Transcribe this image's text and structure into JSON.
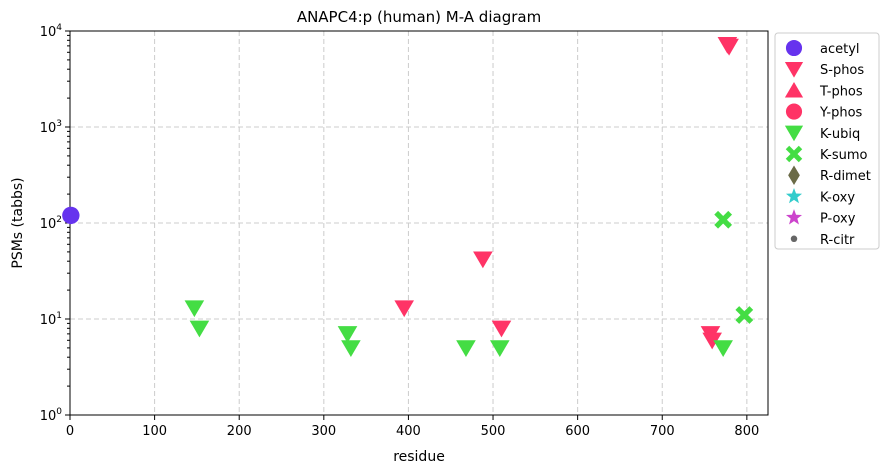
{
  "chart_data": {
    "type": "scatter",
    "title": "ANAPC4:p (human) M-A diagram",
    "xlabel": "residue",
    "ylabel": "PSMs (tabbs)",
    "xlim": [
      0,
      825
    ],
    "ylim": [
      1,
      10000
    ],
    "yscale": "log",
    "grid": true,
    "legend_placement": "outside-right",
    "x_ticks": [
      0,
      100,
      200,
      300,
      400,
      500,
      600,
      700,
      800
    ],
    "y_ticks": [
      {
        "base": "10",
        "exp": "0",
        "value": 1
      },
      {
        "base": "10",
        "exp": "1",
        "value": 10
      },
      {
        "base": "10",
        "exp": "2",
        "value": 100
      },
      {
        "base": "10",
        "exp": "3",
        "value": 1000
      },
      {
        "base": "10",
        "exp": "4",
        "value": 10000
      }
    ],
    "series": [
      {
        "name": "acetyl",
        "marker": "circle",
        "color": "#6633ee",
        "points": [
          [
            1,
            120
          ]
        ]
      },
      {
        "name": "S-phos",
        "marker": "triangle-down",
        "color": "#ff3366",
        "points": [
          [
            395,
            13
          ],
          [
            488,
            42
          ],
          [
            510,
            8
          ],
          [
            757,
            7
          ],
          [
            759,
            6
          ],
          [
            777,
            7200
          ],
          [
            779,
            6900
          ]
        ]
      },
      {
        "name": "T-phos",
        "marker": "triangle-up",
        "color": "#ff3366",
        "points": []
      },
      {
        "name": "Y-phos",
        "marker": "circle",
        "color": "#ff3366",
        "points": []
      },
      {
        "name": "K-ubiq",
        "marker": "triangle-down",
        "color": "#44dd44",
        "points": [
          [
            147,
            13
          ],
          [
            153,
            8
          ],
          [
            328,
            7
          ],
          [
            332,
            5
          ],
          [
            468,
            5
          ],
          [
            508,
            5
          ],
          [
            772,
            5
          ]
        ]
      },
      {
        "name": "K-sumo",
        "marker": "x",
        "color": "#44dd44",
        "points": [
          [
            772,
            108
          ],
          [
            797,
            11
          ]
        ]
      },
      {
        "name": "R-dimet",
        "marker": "diamond",
        "color": "#6b6b47",
        "points": []
      },
      {
        "name": "K-oxy",
        "marker": "star",
        "color": "#33cccc",
        "points": []
      },
      {
        "name": "P-oxy",
        "marker": "star",
        "color": "#cc44cc",
        "points": []
      },
      {
        "name": "R-citr",
        "marker": "dot",
        "color": "#666666",
        "points": []
      }
    ]
  }
}
